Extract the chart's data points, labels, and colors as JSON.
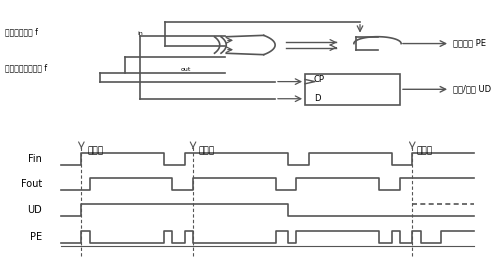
{
  "bg_color": "#ffffff",
  "line_color": "#555555",
  "text_color": "#000000",
  "labels": {
    "fin_label": "接收输入信号 f",
    "fin_sub": "in",
    "fout_label": "本地恢复定时信号 f",
    "fout_sub": "out",
    "pe_label": "相位误差 PE",
    "ud_label": "超前/滞后 UD",
    "cp_label": "CP",
    "d_label": "D",
    "fin_wave": "Fin",
    "fout_wave": "Fout",
    "ud_wave": "UD",
    "pe_wave": "PE",
    "zone1": "超前时",
    "zone2": "滞后时",
    "zone3": "同步时"
  }
}
